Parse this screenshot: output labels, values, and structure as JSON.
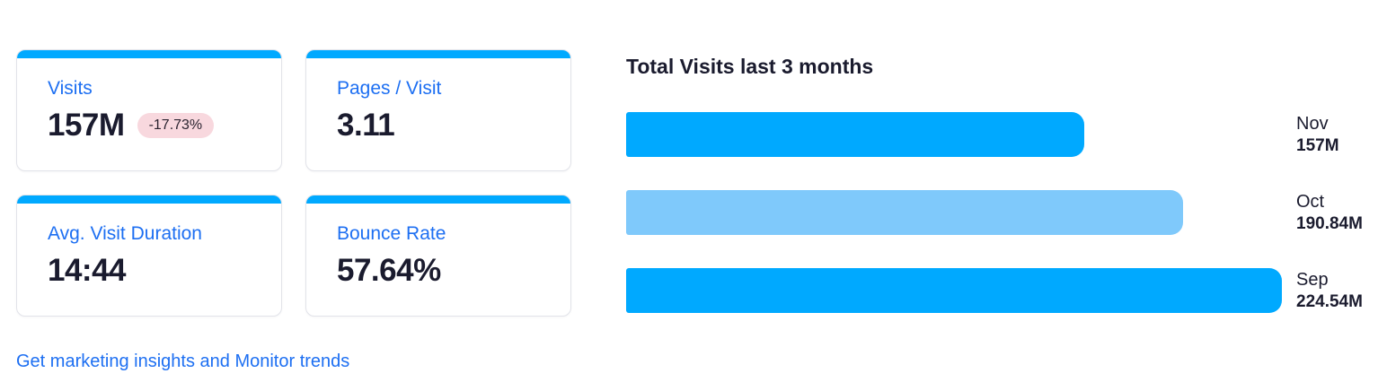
{
  "colors": {
    "accent_blue": "#00a9ff",
    "light_blue": "#7fc9fb",
    "link_blue": "#1d6ff2",
    "text_dark": "#1a1b2e",
    "badge_bg": "#f8d8de",
    "card_border": "#e2e3e9"
  },
  "metrics": [
    {
      "label": "Visits",
      "value": "157M",
      "change": "-17.73%"
    },
    {
      "label": "Pages / Visit",
      "value": "3.11"
    },
    {
      "label": "Avg. Visit Duration",
      "value": "14:44"
    },
    {
      "label": "Bounce Rate",
      "value": "57.64%"
    }
  ],
  "link": {
    "label": "Get marketing insights and Monitor trends"
  },
  "chart_data": {
    "type": "bar",
    "orientation": "horizontal",
    "title": "Total Visits last 3 months",
    "categories": [
      "Nov",
      "Oct",
      "Sep"
    ],
    "values": [
      157,
      190.84,
      224.54
    ],
    "value_labels": [
      "157M",
      "190.84M",
      "224.54M"
    ],
    "xlim": [
      0,
      224.54
    ],
    "grid": false,
    "legend": false,
    "bar_colors": [
      "#00a9ff",
      "#7fc9fb",
      "#00a9ff"
    ],
    "label_position": "right-of-bar"
  }
}
